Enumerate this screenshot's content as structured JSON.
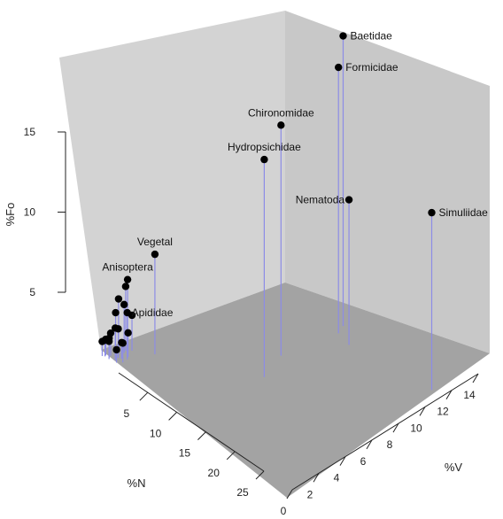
{
  "chart_data": {
    "type": "scatter3d",
    "xlabel": "%N",
    "ylabel": "%V",
    "zlabel": "%Fo",
    "x_ticks": [
      5,
      10,
      15,
      20,
      25
    ],
    "y_ticks": [
      0,
      2,
      4,
      6,
      8,
      10,
      12,
      14
    ],
    "z_ticks": [
      5,
      10,
      15
    ],
    "colors": {
      "stem": "#8c8ce6",
      "point": "#000000"
    },
    "points": [
      {
        "label": "Baetidae",
        "x": 8.8,
        "y": 13.0,
        "z": 18.0
      },
      {
        "label": "Formicidae",
        "x": 9.6,
        "y": 12.3,
        "z": 16.5
      },
      {
        "label": "Chironomidae",
        "x": 9.8,
        "y": 8.2,
        "z": 14.3
      },
      {
        "label": "Hydropsichidae",
        "x": 12.0,
        "y": 6.0,
        "z": 13.5
      },
      {
        "label": "Simuliidae",
        "x": 22.6,
        "y": 12.7,
        "z": 11.0
      },
      {
        "label": "Nematoda",
        "x": 11.8,
        "y": 12.0,
        "z": 9.0
      },
      {
        "label": "Vegetal",
        "x": 3.0,
        "y": 2.6,
        "z": 6.2
      },
      {
        "label": "Anisoptera",
        "x": 1.5,
        "y": 1.4,
        "z": 4.6
      },
      {
        "label": "Apididae",
        "x": 2.3,
        "y": 1.0,
        "z": 2.9
      },
      {
        "label": "",
        "x": 1.0,
        "y": 1.5,
        "z": 4.0
      },
      {
        "label": "",
        "x": 0.8,
        "y": 1.1,
        "z": 3.3
      },
      {
        "label": "",
        "x": 1.2,
        "y": 1.3,
        "z": 3.0
      },
      {
        "label": "",
        "x": 1.0,
        "y": 0.8,
        "z": 2.6
      },
      {
        "label": "",
        "x": 1.3,
        "y": 1.8,
        "z": 2.2
      },
      {
        "label": "",
        "x": 1.8,
        "y": 0.4,
        "z": 2.0
      },
      {
        "label": "",
        "x": 2.0,
        "y": 1.2,
        "z": 1.5
      },
      {
        "label": "",
        "x": 1.6,
        "y": 0.7,
        "z": 1.8
      },
      {
        "label": "",
        "x": 2.5,
        "y": 0.6,
        "z": 1.2
      },
      {
        "label": "",
        "x": 0.9,
        "y": 0.5,
        "z": 1.4
      },
      {
        "label": "",
        "x": 1.1,
        "y": 0.3,
        "z": 1.2
      },
      {
        "label": "",
        "x": 0.7,
        "y": 0.2,
        "z": 1.0
      },
      {
        "label": "",
        "x": 1.3,
        "y": 0.2,
        "z": 1.1
      },
      {
        "label": "",
        "x": 0.5,
        "y": 0.1,
        "z": 0.9
      },
      {
        "label": "",
        "x": 0.6,
        "y": 0.3,
        "z": 1.0
      },
      {
        "label": "",
        "x": 2.2,
        "y": 0.3,
        "z": 0.8
      },
      {
        "label": "",
        "x": 1.9,
        "y": 0.8,
        "z": 1.0
      }
    ]
  }
}
